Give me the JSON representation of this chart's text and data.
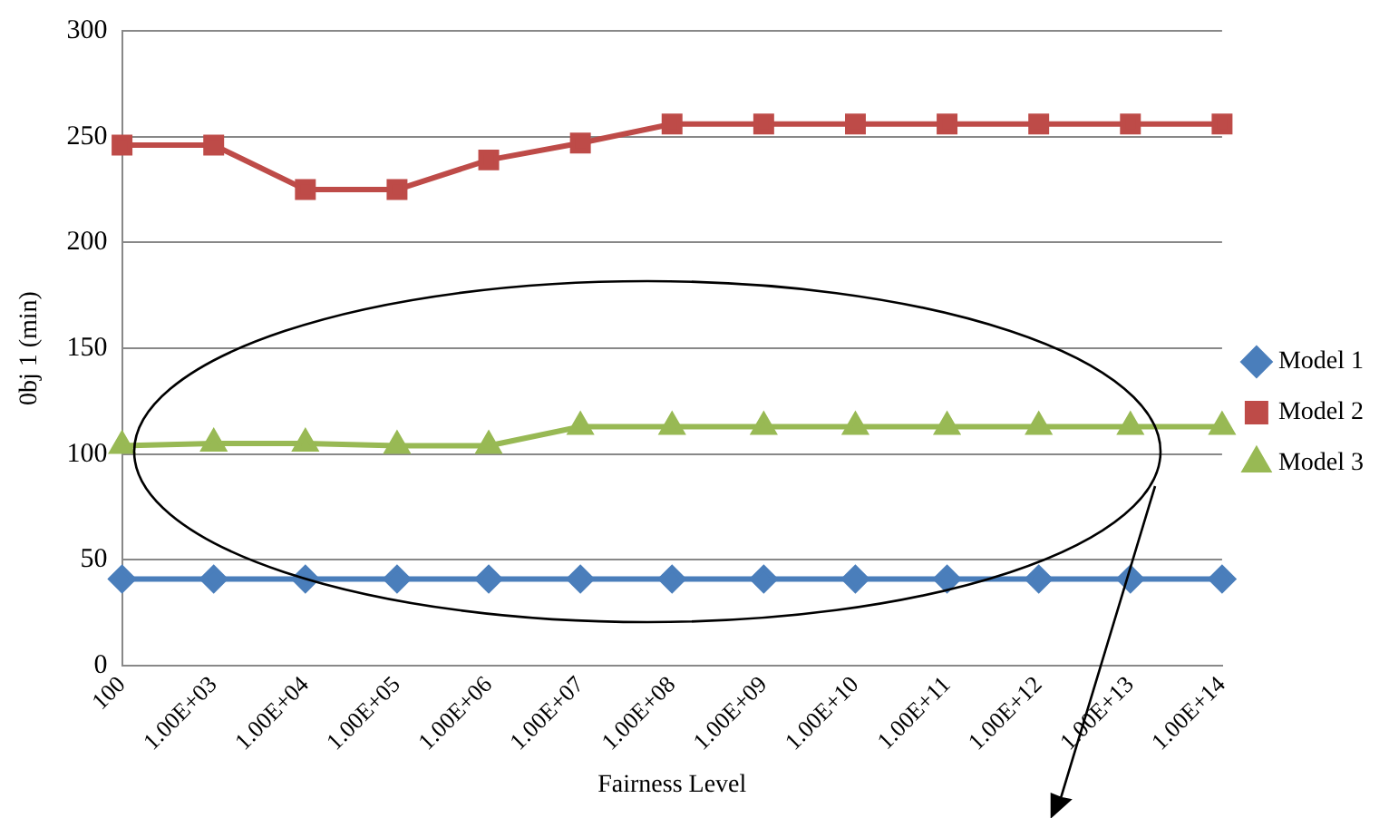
{
  "chart_data": {
    "type": "line",
    "xlabel": "Fairness Level",
    "ylabel": "0bj 1 (min)",
    "categories": [
      "100",
      "1.00E+03",
      "1.00E+04",
      "1.00E+05",
      "1.00E+06",
      "1.00E+07",
      "1.00E+08",
      "1.00E+09",
      "1.00E+10",
      "1.00E+11",
      "1.00E+12",
      "1.00E+13",
      "1.00E+14"
    ],
    "series": [
      {
        "name": "Model 1",
        "color": "#4a7ebb",
        "marker": "diamond",
        "values": [
          41,
          41,
          41,
          41,
          41,
          41,
          41,
          41,
          41,
          41,
          41,
          41,
          41
        ]
      },
      {
        "name": "Model 2",
        "color": "#be4b48",
        "marker": "square",
        "values": [
          246,
          246,
          225,
          225,
          239,
          247,
          256,
          256,
          256,
          256,
          256,
          256,
          256
        ]
      },
      {
        "name": "Model 3",
        "color": "#98b954",
        "marker": "triangle",
        "values": [
          104,
          105,
          105,
          104,
          104,
          113,
          113,
          113,
          113,
          113,
          113,
          113,
          113
        ]
      }
    ],
    "ylim": [
      0,
      300
    ],
    "yticks": [
      0,
      50,
      100,
      150,
      200,
      250,
      300
    ],
    "grid": "y",
    "legend": "right"
  }
}
